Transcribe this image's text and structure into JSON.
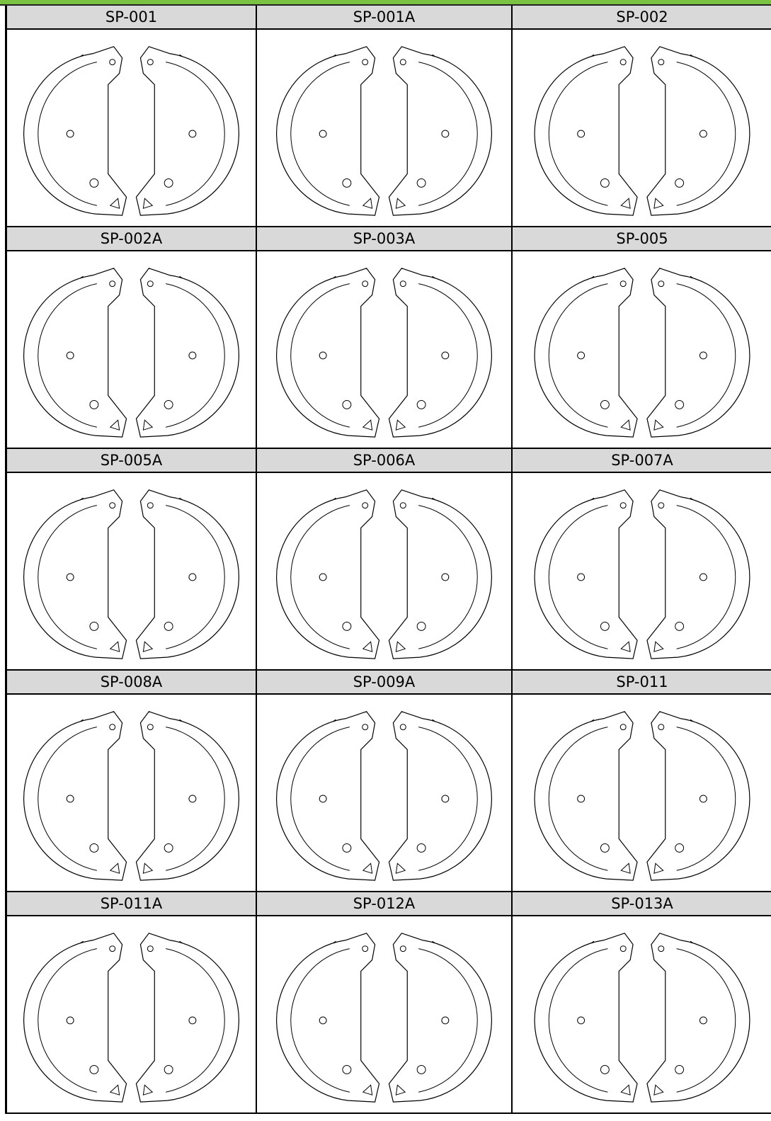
{
  "grid": {
    "rows": [
      [
        "SP-001",
        "SP-001A",
        "SP-002"
      ],
      [
        "SP-002A",
        "SP-003A",
        "SP-005"
      ],
      [
        "SP-005A",
        "SP-006A",
        "SP-007A"
      ],
      [
        "SP-008A",
        "SP-009A",
        "SP-011"
      ],
      [
        "SP-011A",
        "SP-012A",
        "SP-013A"
      ]
    ]
  }
}
